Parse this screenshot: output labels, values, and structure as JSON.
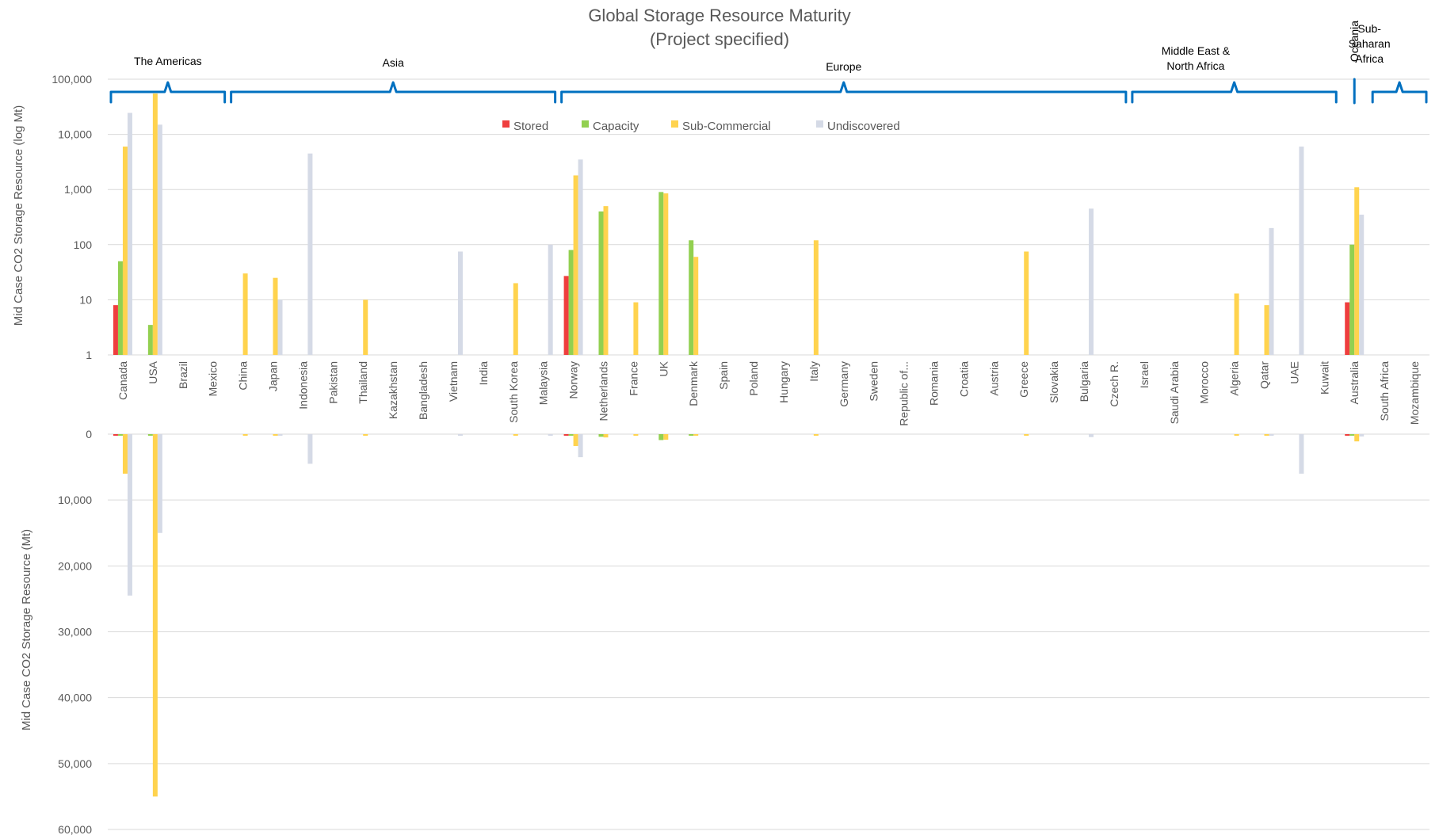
{
  "chart_data": [
    {
      "type": "bar",
      "title": "Global Storage Resource Maturity",
      "subtitle": "(Project specified)",
      "ylabel": "Mid Case CO2 Storage Resource (log Mt)",
      "yscale": "log",
      "ylim": [
        1,
        100000
      ],
      "yticks": [
        "1",
        "10",
        "100",
        "1,000",
        "10,000",
        "100,000"
      ],
      "grid": true,
      "legend_position": "top-center",
      "categories": [
        "Canada",
        "USA",
        "Brazil",
        "Mexico",
        "China",
        "Japan",
        "Indonesia",
        "Pakistan",
        "Thailand",
        "Kazakhstan",
        "Bangladesh",
        "Vietnam",
        "India",
        "South Korea",
        "Malaysia",
        "Norway",
        "Netherlands",
        "France",
        "UK",
        "Denmark",
        "Spain",
        "Poland",
        "Hungary",
        "Italy",
        "Germany",
        "Sweden",
        "Republic of...",
        "Romania",
        "Croatia",
        "Austria",
        "Greece",
        "Slovakia",
        "Bulgaria",
        "Czech R.",
        "Israel",
        "Saudi Arabia",
        "Morocco",
        "Algeria",
        "Qatar",
        "UAE",
        "Kuwait",
        "Australia",
        "South Africa",
        "Mozambique"
      ],
      "regions": [
        {
          "label": "The Americas",
          "first": 0,
          "last": 3
        },
        {
          "label": "Asia",
          "first": 4,
          "last": 14
        },
        {
          "label": "Europe",
          "first": 15,
          "last": 33
        },
        {
          "label": "Middle East &\nNorth Africa",
          "first": 34,
          "last": 40
        },
        {
          "label": "Oceania",
          "first": 41,
          "last": 41
        },
        {
          "label": "Sub-\nSaharan\nAfrica",
          "first": 42,
          "last": 43
        }
      ],
      "series": [
        {
          "name": "Stored",
          "color": "#ef3e3e",
          "values": [
            8,
            0,
            0,
            0,
            0,
            0,
            0,
            0,
            0,
            0,
            0,
            0,
            0,
            0,
            0,
            27,
            0,
            0,
            0,
            0,
            0,
            0,
            0,
            0,
            0,
            0,
            0,
            0,
            0,
            0,
            0,
            0,
            0,
            0,
            0,
            0,
            0,
            0,
            0,
            0,
            0,
            9,
            0,
            0
          ]
        },
        {
          "name": "Capacity",
          "color": "#92d050",
          "values": [
            50,
            3.5,
            0,
            0,
            0,
            0,
            0,
            0,
            0,
            0,
            0,
            0,
            0,
            0,
            0,
            80,
            400,
            0,
            900,
            120,
            0,
            0,
            0,
            0,
            0,
            0,
            0,
            0,
            0,
            0,
            0,
            0,
            0,
            0,
            0,
            0,
            0,
            0,
            0,
            0,
            0,
            100,
            0,
            0
          ]
        },
        {
          "name": "Sub-Commercial",
          "color": "#ffd34e",
          "values": [
            6000,
            55000,
            0,
            0,
            30,
            25,
            0,
            0,
            10,
            0,
            0,
            0,
            0,
            20,
            0,
            1800,
            500,
            9,
            850,
            60,
            0,
            0,
            0,
            120,
            0,
            0,
            0,
            0,
            0,
            0,
            75,
            0,
            0,
            0,
            0,
            0,
            0,
            13,
            8,
            0,
            0,
            1100,
            0,
            0
          ]
        },
        {
          "name": "Undiscovered",
          "color": "#d5dae6",
          "values": [
            24500,
            15000,
            0,
            0,
            0,
            10,
            4500,
            0,
            0,
            0,
            0,
            75,
            0,
            0,
            100,
            3500,
            0,
            0,
            0,
            0,
            0,
            0,
            0,
            0,
            0,
            0,
            0,
            0,
            0,
            0,
            0,
            0,
            450,
            0,
            0,
            0,
            0,
            0,
            200,
            6000,
            0,
            350,
            0,
            0
          ]
        }
      ]
    },
    {
      "type": "bar",
      "orientation": "inverted",
      "ylabel": "Mid Case CO2 Storage Resource (Mt)",
      "ylim": [
        0,
        60000
      ],
      "yticks": [
        "0",
        "10,000",
        "20,000",
        "30,000",
        "40,000",
        "50,000",
        "60,000"
      ],
      "grid": true,
      "categories": "same as panel 1",
      "series": [
        {
          "name": "Stored",
          "color": "#ef3e3e",
          "values": [
            8,
            0,
            0,
            0,
            0,
            0,
            0,
            0,
            0,
            0,
            0,
            0,
            0,
            0,
            0,
            27,
            0,
            0,
            0,
            0,
            0,
            0,
            0,
            0,
            0,
            0,
            0,
            0,
            0,
            0,
            0,
            0,
            0,
            0,
            0,
            0,
            0,
            0,
            0,
            0,
            0,
            9,
            0,
            0
          ]
        },
        {
          "name": "Capacity",
          "color": "#92d050",
          "values": [
            50,
            3.5,
            0,
            0,
            0,
            0,
            0,
            0,
            0,
            0,
            0,
            0,
            0,
            0,
            0,
            80,
            400,
            0,
            900,
            120,
            0,
            0,
            0,
            0,
            0,
            0,
            0,
            0,
            0,
            0,
            0,
            0,
            0,
            0,
            0,
            0,
            0,
            0,
            0,
            0,
            0,
            100,
            0,
            0
          ]
        },
        {
          "name": "Sub-Commercial",
          "color": "#ffd34e",
          "values": [
            6000,
            55000,
            0,
            0,
            30,
            25,
            0,
            0,
            10,
            0,
            0,
            0,
            0,
            20,
            0,
            1800,
            500,
            9,
            850,
            60,
            0,
            0,
            0,
            120,
            0,
            0,
            0,
            0,
            0,
            0,
            75,
            0,
            0,
            0,
            0,
            0,
            0,
            13,
            8,
            0,
            0,
            1100,
            0,
            0
          ]
        },
        {
          "name": "Undiscovered",
          "color": "#d5dae6",
          "values": [
            24500,
            15000,
            0,
            0,
            0,
            10,
            4500,
            0,
            0,
            0,
            0,
            75,
            0,
            0,
            100,
            3500,
            0,
            0,
            0,
            0,
            0,
            0,
            0,
            0,
            0,
            0,
            0,
            0,
            0,
            0,
            0,
            0,
            450,
            0,
            0,
            0,
            0,
            0,
            200,
            6000,
            0,
            350,
            0,
            0
          ]
        }
      ]
    }
  ]
}
